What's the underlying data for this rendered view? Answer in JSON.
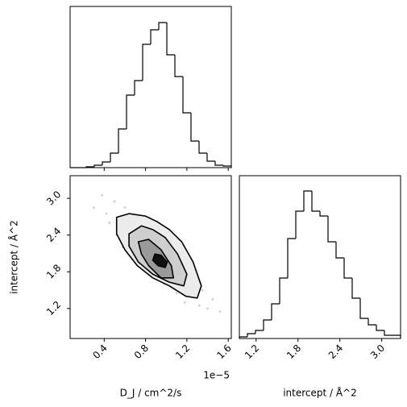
{
  "chart_data": [
    {
      "type": "histogram",
      "bins": [
        0.07,
        0.148,
        0.226,
        0.304,
        0.382,
        0.46,
        0.538,
        0.616,
        0.694,
        0.772,
        0.85,
        0.928,
        1.006,
        1.084,
        1.162,
        1.24,
        1.318,
        1.396,
        1.474,
        1.552,
        1.63
      ],
      "values": [
        0,
        0,
        1,
        3,
        7,
        18,
        48,
        90,
        108,
        153,
        171,
        180,
        140,
        113,
        68,
        33,
        18,
        8,
        3,
        2
      ],
      "xlim": [
        0.07,
        1.63
      ],
      "ylim": [
        0,
        200
      ],
      "xticks": [
        0.4,
        0.8,
        1.2,
        1.6
      ],
      "color": "#000000"
    },
    {
      "type": "hist2d",
      "xlabel": "D_J / cm^2/s",
      "ylabel": "intercept / Å^2",
      "x_offset_label": "1e−5",
      "xlim": [
        0.07,
        1.63
      ],
      "ylim": [
        0.71,
        3.37
      ],
      "xticks": [
        0.4,
        0.8,
        1.2,
        1.6
      ],
      "yticks": [
        {
          "value": 1.2,
          "label": "1.2"
        },
        {
          "value": 1.8,
          "label": "1.8"
        },
        {
          "value": 2.4,
          "label": "2.4"
        },
        {
          "value": 3.0,
          "label": "3.0"
        }
      ],
      "points": {
        "x": [
          0.3,
          0.38,
          0.42,
          0.45,
          0.5,
          0.52,
          0.55,
          0.58,
          0.6,
          0.62,
          0.65,
          0.68,
          0.7,
          0.72,
          0.75,
          0.78,
          0.8,
          0.82,
          0.85,
          0.88,
          0.9,
          0.92,
          0.95,
          0.98,
          1.0,
          1.03,
          1.05,
          1.08,
          1.1,
          1.12,
          1.15,
          1.18,
          1.2,
          1.25,
          1.28,
          1.32,
          1.35,
          1.4,
          1.45,
          1.52
        ],
        "y": [
          2.85,
          3.05,
          2.75,
          2.6,
          2.95,
          2.4,
          2.7,
          2.2,
          2.85,
          2.5,
          2.3,
          2.65,
          2.05,
          2.45,
          2.2,
          2.7,
          1.95,
          2.35,
          2.1,
          1.75,
          2.4,
          1.85,
          2.15,
          1.6,
          1.9,
          2.2,
          1.55,
          1.8,
          1.45,
          2.0,
          1.65,
          1.3,
          1.55,
          1.4,
          1.7,
          1.25,
          1.5,
          1.2,
          1.35,
          1.15
        ]
      },
      "point_color": "#c8c8c8",
      "contours": [
        {
          "x": [
            0.52,
            0.64,
            0.8,
            0.91,
            1.03,
            1.15,
            1.26,
            1.34,
            1.3,
            1.19,
            1.03,
            0.87,
            0.72,
            0.6,
            0.52
          ],
          "y": [
            2.69,
            2.75,
            2.71,
            2.62,
            2.49,
            2.29,
            1.96,
            1.57,
            1.37,
            1.4,
            1.57,
            1.7,
            1.9,
            2.16,
            2.42
          ],
          "fill": "#ececec"
        },
        {
          "x": [
            0.64,
            0.76,
            0.87,
            0.99,
            1.11,
            1.2,
            1.17,
            1.03,
            0.87,
            0.73,
            0.64
          ],
          "y": [
            2.42,
            2.55,
            2.49,
            2.36,
            2.09,
            1.76,
            1.57,
            1.63,
            1.76,
            1.96,
            2.22
          ],
          "fill": "#cfcfcf"
        },
        {
          "x": [
            0.73,
            0.83,
            0.95,
            1.05,
            1.07,
            0.95,
            0.83,
            0.76
          ],
          "y": [
            2.29,
            2.33,
            2.16,
            1.9,
            1.7,
            1.7,
            1.9,
            2.09
          ],
          "fill": "#9a9a9a"
        },
        {
          "x": [
            0.89,
            0.95,
            1.01,
            0.99,
            0.92,
            0.87
          ],
          "y": [
            2.09,
            2.07,
            1.96,
            1.87,
            1.9,
            1.99
          ],
          "fill": "#111111"
        }
      ]
    },
    {
      "type": "histogram",
      "xlabel": "intercept / Å^2",
      "bins": [
        0.96,
        1.0755,
        1.191,
        1.3065,
        1.422,
        1.5375,
        1.653,
        1.7685,
        1.884,
        1.9995,
        2.115,
        2.2305,
        2.346,
        2.4615,
        2.577,
        2.6925,
        2.808,
        2.9235,
        3.039,
        3.1545,
        3.27
      ],
      "values": [
        2,
        6,
        10,
        23,
        43,
        75,
        124,
        158,
        183,
        158,
        152,
        120,
        100,
        75,
        50,
        25,
        17,
        10,
        4,
        4
      ],
      "xlim": [
        0.96,
        3.27
      ],
      "ylim": [
        0,
        202
      ],
      "xticks": [
        {
          "value": 1.2,
          "label": "1.2"
        },
        {
          "value": 1.8,
          "label": "1.8"
        },
        {
          "value": 2.4,
          "label": "2.4"
        },
        {
          "value": 3.0,
          "label": "3.0"
        }
      ],
      "color": "#000000"
    }
  ]
}
